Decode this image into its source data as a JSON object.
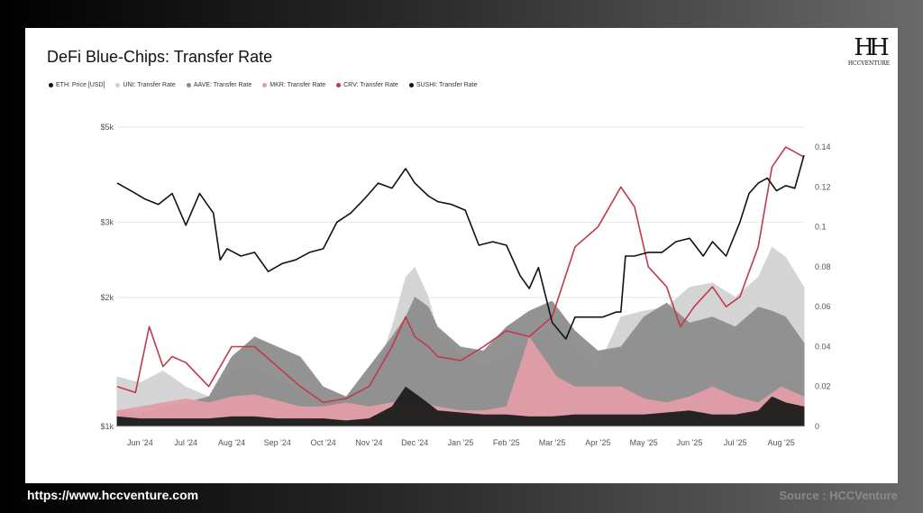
{
  "page": {
    "title": "DeFi Blue-Chips: Transfer Rate",
    "logo_text": "HCCVENTURE",
    "footer_url": "https://www.hccventure.com",
    "footer_source": "Source : HCCVenture"
  },
  "chart_data": {
    "type": "area",
    "title": "DeFi Blue-Chips: Transfer Rate",
    "legend": [
      {
        "label": "ETH: Price [USD]",
        "color": "#111111"
      },
      {
        "label": "UNI: Transfer Rate",
        "color": "#cfcfcf"
      },
      {
        "label": "AAVE: Transfer Rate",
        "color": "#8a8a8a"
      },
      {
        "label": "MKR: Transfer Rate",
        "color": "#e39aa6"
      },
      {
        "label": "CRV: Transfer Rate",
        "color": "#c0394d"
      },
      {
        "label": "SUSHI: Transfer Rate",
        "color": "#111111"
      }
    ],
    "x_ticks": [
      "Jun '24",
      "Jul '24",
      "Aug '24",
      "Sep '24",
      "Oct '24",
      "Nov '24",
      "Dec '24",
      "Jan '25",
      "Feb '25",
      "Mar '25",
      "Apr '25",
      "May '25",
      "Jun '25",
      "Jul '25",
      "Aug '25"
    ],
    "y_left": {
      "scale": "log",
      "ticks": [
        "$1k",
        "$2k",
        "$3k",
        "$5k"
      ],
      "range": [
        1000,
        5000
      ]
    },
    "y_right": {
      "ticks": [
        "0",
        "0.02",
        "0.04",
        "0.06",
        "0.08",
        "0.1",
        "0.12",
        "0.14"
      ],
      "range": [
        0,
        0.15
      ]
    },
    "grid": "horizontal",
    "months_x": [
      0,
      1,
      2,
      3,
      4,
      5,
      6,
      7,
      8,
      9,
      10,
      11,
      12,
      13,
      14,
      15
    ],
    "series": [
      {
        "name": "ETH: Price [USD]",
        "axis": "left",
        "x": [
          0,
          0.3,
          0.6,
          0.9,
          1.2,
          1.5,
          1.8,
          2.1,
          2.25,
          2.4,
          2.7,
          3.0,
          3.3,
          3.6,
          3.9,
          4.2,
          4.5,
          4.8,
          5.1,
          5.4,
          5.7,
          6.0,
          6.3,
          6.5,
          6.8,
          7.0,
          7.3,
          7.6,
          7.9,
          8.2,
          8.5,
          8.8,
          9.0,
          9.2,
          9.5,
          9.8,
          10.0,
          10.3,
          10.6,
          10.9,
          11.0,
          11.1,
          11.3,
          11.6,
          11.9,
          12.2,
          12.5,
          12.8,
          13.0,
          13.3,
          13.6,
          13.8,
          14.0,
          14.2,
          14.4,
          14.6,
          14.8,
          15.0
        ],
        "y": [
          3700,
          3550,
          3400,
          3300,
          3500,
          2950,
          3500,
          3150,
          2450,
          2600,
          2500,
          2550,
          2300,
          2400,
          2450,
          2550,
          2600,
          3000,
          3150,
          3400,
          3700,
          3600,
          4000,
          3700,
          3450,
          3350,
          3300,
          3200,
          2650,
          2700,
          2650,
          2250,
          2100,
          2350,
          1750,
          1600,
          1800,
          1800,
          1800,
          1850,
          1850,
          2500,
          2500,
          2550,
          2550,
          2700,
          2750,
          2500,
          2700,
          2500,
          3000,
          3500,
          3700,
          3800,
          3550,
          3650,
          3600,
          4300
        ]
      },
      {
        "name": "UNI: Transfer Rate",
        "axis": "right",
        "x": [
          0,
          0.5,
          1.0,
          1.5,
          2.0,
          2.5,
          3.0,
          3.5,
          4.0,
          4.5,
          5.0,
          5.5,
          6.0,
          6.3,
          6.5,
          6.8,
          7.0,
          7.5,
          8.0,
          8.5,
          9.0,
          9.5,
          10.0,
          10.5,
          11.0,
          11.5,
          12.0,
          12.5,
          13.0,
          13.5,
          14.0,
          14.3,
          14.6,
          15.0
        ],
        "y": [
          0.025,
          0.022,
          0.028,
          0.02,
          0.015,
          0.028,
          0.03,
          0.024,
          0.018,
          0.012,
          0.015,
          0.018,
          0.05,
          0.075,
          0.08,
          0.065,
          0.048,
          0.035,
          0.03,
          0.035,
          0.045,
          0.05,
          0.04,
          0.03,
          0.055,
          0.058,
          0.06,
          0.07,
          0.072,
          0.065,
          0.075,
          0.09,
          0.085,
          0.07
        ]
      },
      {
        "name": "AAVE: Transfer Rate",
        "axis": "right",
        "x": [
          0,
          0.5,
          1.0,
          1.5,
          2.0,
          2.5,
          3.0,
          3.5,
          4.0,
          4.5,
          5.0,
          5.5,
          6.0,
          6.3,
          6.5,
          6.8,
          7.0,
          7.5,
          8.0,
          8.5,
          9.0,
          9.5,
          10.0,
          10.5,
          11.0,
          11.5,
          12.0,
          12.5,
          13.0,
          13.5,
          14.0,
          14.3,
          14.6,
          15.0
        ],
        "y": [
          0.008,
          0.006,
          0.01,
          0.012,
          0.015,
          0.035,
          0.045,
          0.04,
          0.035,
          0.02,
          0.015,
          0.03,
          0.045,
          0.055,
          0.065,
          0.06,
          0.05,
          0.04,
          0.038,
          0.05,
          0.058,
          0.063,
          0.048,
          0.038,
          0.04,
          0.055,
          0.062,
          0.052,
          0.055,
          0.05,
          0.06,
          0.058,
          0.055,
          0.042
        ]
      },
      {
        "name": "MKR: Transfer Rate",
        "axis": "right",
        "x": [
          0,
          0.5,
          1.0,
          1.5,
          2.0,
          2.5,
          3.0,
          3.5,
          4.0,
          4.5,
          5.0,
          5.5,
          6.0,
          6.5,
          7.0,
          7.5,
          8.0,
          8.5,
          9.0,
          9.3,
          9.6,
          10.0,
          10.5,
          11.0,
          11.5,
          12.0,
          12.5,
          13.0,
          13.5,
          14.0,
          14.5,
          15.0
        ],
        "y": [
          0.008,
          0.01,
          0.012,
          0.014,
          0.012,
          0.015,
          0.016,
          0.013,
          0.01,
          0.01,
          0.012,
          0.01,
          0.012,
          0.012,
          0.01,
          0.008,
          0.008,
          0.01,
          0.045,
          0.035,
          0.025,
          0.02,
          0.02,
          0.02,
          0.014,
          0.012,
          0.015,
          0.02,
          0.015,
          0.012,
          0.02,
          0.015
        ]
      },
      {
        "name": "CRV: Transfer Rate",
        "axis": "right",
        "x": [
          0,
          0.4,
          0.7,
          1.0,
          1.2,
          1.5,
          2.0,
          2.5,
          3.0,
          3.5,
          4.0,
          4.5,
          5.0,
          5.5,
          6.0,
          6.3,
          6.5,
          6.8,
          7.0,
          7.5,
          8.0,
          8.5,
          9.0,
          9.5,
          10.0,
          10.5,
          11.0,
          11.3,
          11.6,
          12.0,
          12.3,
          12.6,
          13.0,
          13.3,
          13.6,
          14.0,
          14.3,
          14.6,
          15.0
        ],
        "y": [
          0.02,
          0.017,
          0.05,
          0.03,
          0.035,
          0.032,
          0.02,
          0.04,
          0.04,
          0.03,
          0.02,
          0.012,
          0.014,
          0.02,
          0.04,
          0.055,
          0.045,
          0.04,
          0.035,
          0.033,
          0.04,
          0.048,
          0.045,
          0.055,
          0.09,
          0.1,
          0.12,
          0.11,
          0.08,
          0.07,
          0.05,
          0.06,
          0.07,
          0.06,
          0.065,
          0.09,
          0.13,
          0.14,
          0.135
        ]
      },
      {
        "name": "SUSHI: Transfer Rate",
        "axis": "right",
        "x": [
          0,
          0.5,
          1.0,
          1.5,
          2.0,
          2.5,
          3.0,
          3.5,
          4.0,
          4.5,
          5.0,
          5.5,
          6.0,
          6.3,
          6.6,
          7.0,
          7.5,
          8.0,
          8.5,
          9.0,
          9.5,
          10.0,
          10.5,
          11.0,
          11.5,
          12.0,
          12.5,
          13.0,
          13.5,
          14.0,
          14.3,
          14.6,
          15.0
        ],
        "y": [
          0.005,
          0.004,
          0.004,
          0.004,
          0.004,
          0.005,
          0.005,
          0.004,
          0.004,
          0.004,
          0.003,
          0.004,
          0.01,
          0.02,
          0.015,
          0.008,
          0.007,
          0.006,
          0.006,
          0.005,
          0.005,
          0.006,
          0.006,
          0.006,
          0.006,
          0.007,
          0.008,
          0.006,
          0.006,
          0.008,
          0.015,
          0.012,
          0.01
        ]
      }
    ]
  }
}
